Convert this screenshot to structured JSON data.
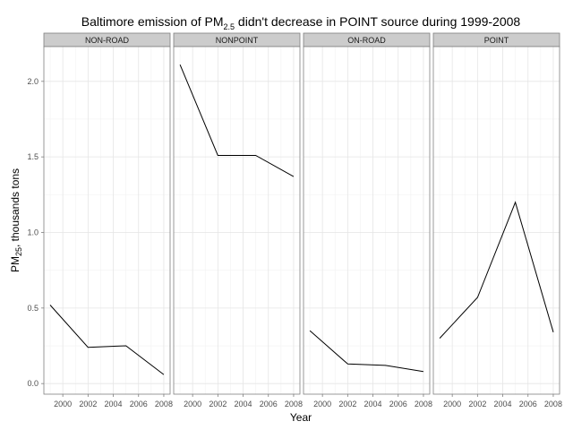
{
  "chart_data": {
    "type": "line",
    "title": {
      "prefix": "Baltimore emission of PM",
      "subscript": "2.5",
      "suffix": " didn't decrease in POINT source during 1999-2008"
    },
    "xlabel": "Year",
    "ylabel": {
      "prefix": "PM",
      "subscript": "25",
      "suffix": ", thousands tons"
    },
    "x": [
      1999,
      2002,
      2005,
      2008
    ],
    "xlim": [
      1998.5,
      2008.5
    ],
    "ylim": [
      -0.07,
      2.23
    ],
    "x_ticks": [
      2000,
      2002,
      2004,
      2006,
      2008
    ],
    "y_ticks": [
      0.0,
      0.5,
      1.0,
      1.5,
      2.0
    ],
    "y_tick_labels": [
      "0.0",
      "0.5",
      "1.0",
      "1.5",
      "2.0"
    ],
    "grid": true,
    "facets": [
      {
        "name": "NON-ROAD",
        "values": [
          0.52,
          0.24,
          0.25,
          0.06
        ]
      },
      {
        "name": "NONPOINT",
        "values": [
          2.11,
          1.51,
          1.51,
          1.37
        ]
      },
      {
        "name": "ON-ROAD",
        "values": [
          0.35,
          0.13,
          0.12,
          0.08
        ]
      },
      {
        "name": "POINT",
        "values": [
          0.3,
          0.57,
          1.2,
          0.34
        ]
      }
    ],
    "colors": {
      "line": "#000000",
      "strip_fill": "#cccccc",
      "panel_border": "#7f7f7f",
      "grid_major": "#e5e5e5",
      "grid_minor": "#f2f2f2"
    }
  }
}
